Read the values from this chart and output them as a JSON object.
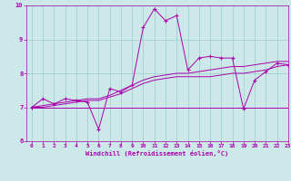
{
  "title": "",
  "xlabel": "Windchill (Refroidissement éolien,°C)",
  "ylabel": "",
  "xlim": [
    -0.5,
    23
  ],
  "ylim": [
    6,
    10
  ],
  "yticks": [
    6,
    7,
    8,
    9,
    10
  ],
  "xticks": [
    0,
    1,
    2,
    3,
    4,
    5,
    6,
    7,
    8,
    9,
    10,
    11,
    12,
    13,
    14,
    15,
    16,
    17,
    18,
    19,
    20,
    21,
    22,
    23
  ],
  "bg_color": "#cce8e8",
  "line_color": "#aa00aa",
  "grid_color": "#99cccc",
  "series": {
    "line1_x": [
      0,
      1,
      2,
      3,
      4,
      5,
      6,
      7,
      8,
      9,
      10,
      11,
      12,
      13,
      14,
      15,
      16,
      17,
      18,
      19,
      20,
      21,
      22,
      23
    ],
    "line1_y": [
      7.0,
      7.25,
      7.1,
      7.25,
      7.2,
      7.15,
      6.35,
      7.55,
      7.45,
      7.65,
      9.35,
      9.9,
      9.55,
      9.7,
      8.1,
      8.45,
      8.5,
      8.45,
      8.45,
      6.95,
      7.8,
      8.05,
      8.3,
      8.25
    ],
    "line2_x": [
      0,
      1,
      2,
      3,
      4,
      5,
      6,
      7,
      8,
      9,
      10,
      11,
      12,
      13,
      14,
      15,
      16,
      17,
      18,
      19,
      20,
      21,
      22,
      23
    ],
    "line2_y": [
      7.0,
      7.0,
      7.05,
      7.1,
      7.15,
      7.2,
      7.2,
      7.3,
      7.4,
      7.55,
      7.7,
      7.8,
      7.85,
      7.9,
      7.9,
      7.9,
      7.9,
      7.95,
      8.0,
      8.0,
      8.05,
      8.1,
      8.2,
      8.25
    ],
    "line3_x": [
      0,
      23
    ],
    "line3_y": [
      7.0,
      7.0
    ],
    "line4_x": [
      0,
      1,
      2,
      3,
      4,
      5,
      6,
      7,
      8,
      9,
      10,
      11,
      12,
      13,
      14,
      15,
      16,
      17,
      18,
      19,
      20,
      21,
      22,
      23
    ],
    "line4_y": [
      7.0,
      7.05,
      7.1,
      7.15,
      7.2,
      7.25,
      7.25,
      7.35,
      7.5,
      7.65,
      7.8,
      7.9,
      7.95,
      8.0,
      8.0,
      8.05,
      8.1,
      8.15,
      8.2,
      8.2,
      8.25,
      8.3,
      8.35,
      8.35
    ]
  },
  "figsize": [
    3.2,
    2.0
  ],
  "dpi": 100
}
